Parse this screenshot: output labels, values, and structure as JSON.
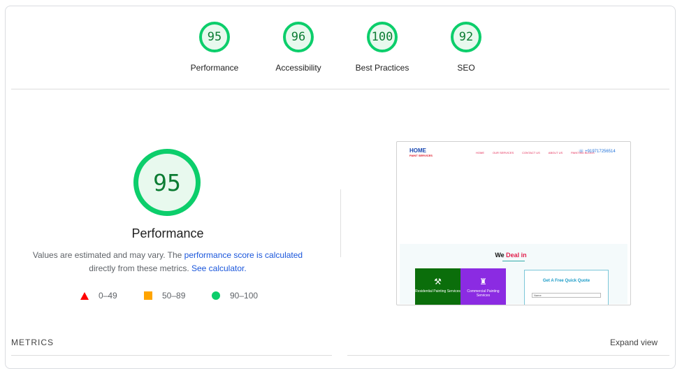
{
  "categories": [
    {
      "score": "95",
      "label": "Performance"
    },
    {
      "score": "96",
      "label": "Accessibility"
    },
    {
      "score": "100",
      "label": "Best Practices"
    },
    {
      "score": "92",
      "label": "SEO"
    }
  ],
  "performance": {
    "score": "95",
    "title": "Performance",
    "desc_prefix": "Values are estimated and may vary. The ",
    "desc_link": "performance score is calculated",
    "desc_middle": "directly from these metrics. ",
    "calc_link": "See calculator."
  },
  "legend": [
    {
      "range": "0–49",
      "icon": "triangle-icon",
      "color": "#ff0000"
    },
    {
      "range": "50–89",
      "icon": "square-icon",
      "color": "#ffa400"
    },
    {
      "range": "90–100",
      "icon": "circle-icon",
      "color": "#0cce6b"
    }
  ],
  "screenshot": {
    "logo": "HOME",
    "logo_tag": "PAINT SERVICES",
    "nav": [
      "HOME",
      "OUR SERVICES",
      "CONTACT US",
      "ABOUT US",
      "PAINTING BLOGS"
    ],
    "phone": "+919717256514",
    "deal_we": "We ",
    "deal_in": "Deal in",
    "tile1": "Residential Painting Services",
    "tile2": "Commercial Painting Services",
    "quote_title": "Get A Free Quick Quote",
    "quote_field": "Name"
  },
  "footer": {
    "metrics": "METRICS",
    "expand": "Expand view"
  },
  "colors": {
    "pass": "#0cce6b",
    "pass_text": "#0c7c33",
    "average": "#ffa400",
    "fail": "#ff0000",
    "link": "#1a56db"
  }
}
